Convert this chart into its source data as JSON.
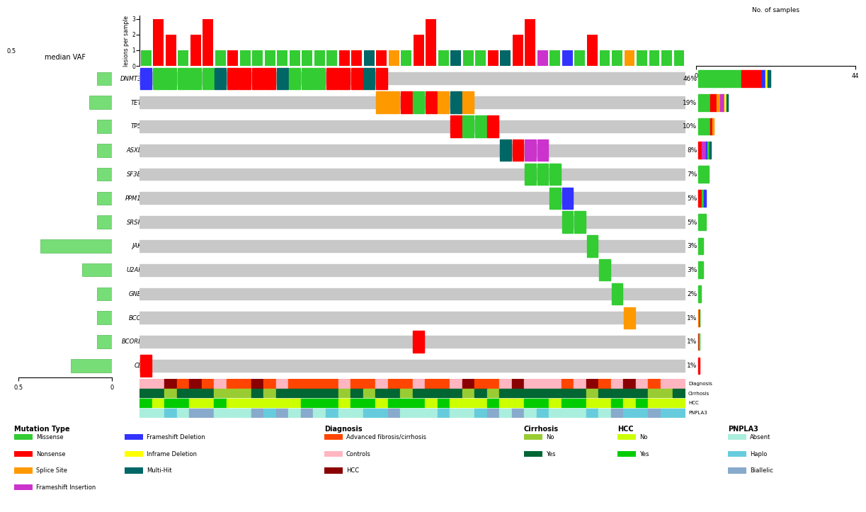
{
  "genes": [
    "DNMT3A",
    "TET2",
    "TP53",
    "ASXL1",
    "SF3B1",
    "PPM1D",
    "SRSF2",
    "JAK2",
    "U2AF1",
    "GNB1",
    "BCOR",
    "BCORL1",
    "CBL"
  ],
  "percentages": [
    46,
    19,
    10,
    8,
    7,
    5,
    5,
    3,
    3,
    2,
    1,
    1,
    1
  ],
  "vaf_values": [
    0.08,
    0.12,
    0.08,
    0.08,
    0.08,
    0.08,
    0.08,
    0.38,
    0.16,
    0.08,
    0.08,
    0.08,
    0.22
  ],
  "n_samples": 44,
  "mutation_colors": {
    "Missense": "#33CC33",
    "Nonsense": "#FF0000",
    "Splice Site": "#FF9900",
    "Frameshift Insertion": "#CC33CC",
    "Frameshift Deletion": "#3333FF",
    "Inframe Deletion": "#FFFF00",
    "Multi-Hit": "#006666"
  },
  "diagnosis_colors": {
    "Advanced fibrosis/cirrhosis": "#FF4500",
    "Controls": "#FFB6C1",
    "HCC": "#8B0000"
  },
  "cirrhosis_colors": {
    "No": "#99CC33",
    "Yes": "#006633"
  },
  "hcc_colors": {
    "No": "#CCFF00",
    "Yes": "#00CC00"
  },
  "pnpla3_colors": {
    "Absent": "#AAEEDD",
    "Haplo": "#66CCDD",
    "Biallelic": "#88AACC"
  },
  "gene_compositions": {
    "DNMT3A": [
      [
        "Missense",
        0.6
      ],
      [
        "Nonsense",
        0.28
      ],
      [
        "Frameshift Deletion",
        0.05
      ],
      [
        "Inframe Deletion",
        0.03
      ],
      [
        "Multi-Hit",
        0.04
      ]
    ],
    "TET2": [
      [
        "Missense",
        0.4
      ],
      [
        "Nonsense",
        0.22
      ],
      [
        "Splice Site",
        0.12
      ],
      [
        "Frameshift Insertion",
        0.14
      ],
      [
        "Inframe Deletion",
        0.06
      ],
      [
        "Multi-Hit",
        0.06
      ]
    ],
    "TP53": [
      [
        "Missense",
        0.75
      ],
      [
        "Nonsense",
        0.15
      ],
      [
        "Splice Site",
        0.1
      ]
    ],
    "ASXL1": [
      [
        "Nonsense",
        0.3
      ],
      [
        "Frameshift Insertion",
        0.3
      ],
      [
        "Frameshift Deletion",
        0.15
      ],
      [
        "Missense",
        0.15
      ],
      [
        "Multi-Hit",
        0.1
      ]
    ],
    "SF3B1": [
      [
        "Missense",
        1.0
      ]
    ],
    "PPM1D": [
      [
        "Nonsense",
        0.45
      ],
      [
        "Missense",
        0.3
      ],
      [
        "Frameshift Deletion",
        0.25
      ]
    ],
    "SRSF2": [
      [
        "Missense",
        1.0
      ]
    ],
    "JAK2": [
      [
        "Missense",
        1.0
      ]
    ],
    "U2AF1": [
      [
        "Missense",
        1.0
      ]
    ],
    "GNB1": [
      [
        "Missense",
        1.0
      ]
    ],
    "BCOR": [
      [
        "Splice Site",
        0.5
      ],
      [
        "Nonsense",
        0.3
      ],
      [
        "Missense",
        0.2
      ]
    ],
    "BCORL1": [
      [
        "Nonsense",
        0.5
      ],
      [
        "Missense",
        0.5
      ]
    ],
    "CBL": [
      [
        "Nonsense",
        1.0
      ]
    ]
  }
}
